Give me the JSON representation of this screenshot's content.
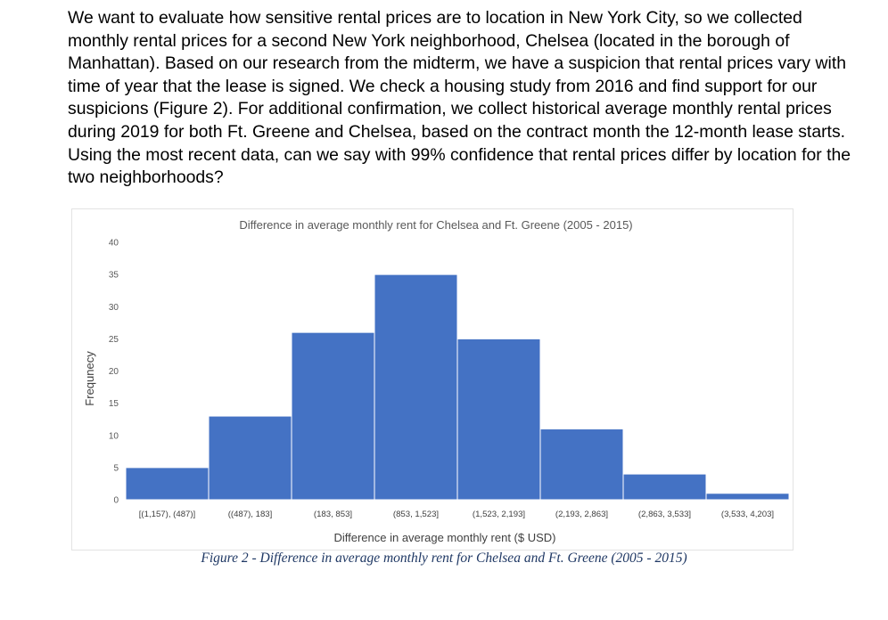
{
  "paragraph": "We want to evaluate how sensitive rental prices are to location in New York City, so we collected monthly rental prices for a second New York neighborhood, Chelsea (located in the borough of Manhattan). Based on our research from the midterm, we have a suspicion that rental prices vary with time of year that the lease is signed. We check a housing study from 2016 and find support for our suspicions (Figure 2). For additional confirmation, we collect historical average monthly rental prices during 2019 for both Ft. Greene and Chelsea, based on the contract month the 12-month lease starts. Using the most recent data, can we say with 99% confidence that rental prices differ by location for the two neighborhoods?",
  "caption": "Figure 2 - Difference in average monthly rent for Chelsea and Ft. Greene (2005 - 2015)",
  "chart_data": {
    "type": "bar",
    "title": "Difference in average monthly rent for Chelsea and Ft. Greene (2005 - 2015)",
    "xlabel": "Difference in average monthly rent ($ USD)",
    "ylabel": "Frequnecy",
    "categories": [
      "[(1,157), (487)]",
      "((487), 183]",
      "(183, 853]",
      "(853, 1,523]",
      "(1,523, 2,193]",
      "(2,193, 2,863]",
      "(2,863, 3,533]",
      "(3,533, 4,203]"
    ],
    "values": [
      5,
      13,
      26,
      35,
      25,
      11,
      4,
      1
    ],
    "ylim": [
      0,
      40
    ],
    "yticks": [
      0,
      5,
      10,
      15,
      20,
      25,
      30,
      35,
      40
    ],
    "bar_color": "#4472c4",
    "grid": false,
    "legend": "none"
  }
}
